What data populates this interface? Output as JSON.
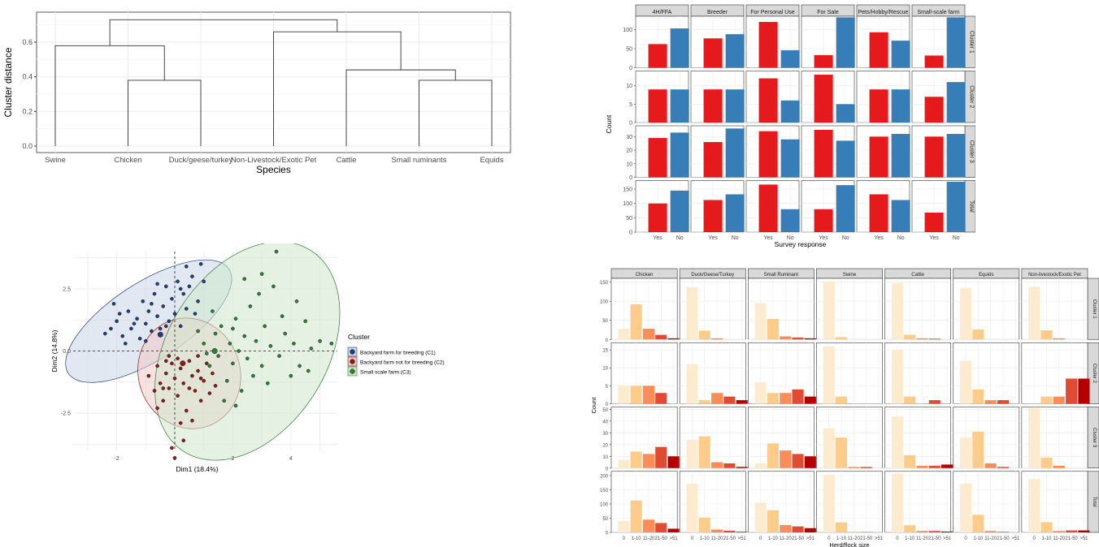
{
  "dendrogram": {
    "chart_data": {
      "type": "dendrogram",
      "xlabel": "Species",
      "ylabel": "Cluster distance",
      "ylim": [
        0,
        0.75
      ],
      "yticks": [
        "0.0",
        "0.2",
        "0.4",
        "0.6"
      ],
      "leaves": [
        "Swine",
        "Chicken",
        "Duck/geese/turkey",
        "Non-Livestock/Exotic Pet",
        "Cattle",
        "Small ruminants",
        "Equids"
      ],
      "merges": [
        {
          "a": "Chicken",
          "b": "Duck/geese/turkey",
          "height": 0.38
        },
        {
          "a": "Small ruminants",
          "b": "Equids",
          "height": 0.38
        },
        {
          "a": "Cattle",
          "b": "Small ruminants+Equids",
          "height": 0.44
        },
        {
          "a": "Swine",
          "b": "Chicken+Duck/geese/turkey",
          "height": 0.58
        },
        {
          "a": "Non-Livestock/Exotic Pet",
          "b": "Cattle+Small ruminants+Equids",
          "height": 0.66
        },
        {
          "a": "left",
          "b": "right",
          "height": 0.73
        }
      ],
      "grid": true
    }
  },
  "survey": {
    "chart_data": {
      "type": "bar",
      "facet_cols": [
        "4H/FFA",
        "Breeder",
        "For Personal Use",
        "For Sale",
        "Pets/Hobby/Rescue",
        "Small-scale farm"
      ],
      "facet_rows": [
        "Cluster 1",
        "Cluster 2",
        "Cluster 3",
        "Total"
      ],
      "categories": [
        "Yes",
        "No"
      ],
      "colors": {
        "Yes": "#e41a1c",
        "No": "#377eb8"
      },
      "xlabel": "Survey response",
      "ylabel": "Count",
      "rows": [
        {
          "ylim": [
            0,
            135
          ],
          "yticks": [
            0,
            50,
            100
          ],
          "values": [
            [
              62,
              103
            ],
            [
              77,
              88
            ],
            [
              120,
              46
            ],
            [
              33,
              132
            ],
            [
              93,
              71
            ],
            [
              32,
              132
            ]
          ]
        },
        {
          "ylim": [
            0,
            14
          ],
          "yticks": [
            0,
            5,
            10
          ],
          "values": [
            [
              9,
              9
            ],
            [
              9,
              9
            ],
            [
              12,
              6
            ],
            [
              13,
              5
            ],
            [
              9,
              9
            ],
            [
              7,
              11
            ]
          ]
        },
        {
          "ylim": [
            0,
            38
          ],
          "yticks": [
            0,
            10,
            20,
            30
          ],
          "values": [
            [
              29,
              33
            ],
            [
              26,
              36
            ],
            [
              34,
              28
            ],
            [
              35,
              27
            ],
            [
              30,
              32
            ],
            [
              30,
              32
            ]
          ]
        },
        {
          "ylim": [
            0,
            180
          ],
          "yticks": [
            0,
            50,
            100,
            150
          ],
          "values": [
            [
              100,
              145
            ],
            [
              112,
              132
            ],
            [
              166,
              80
            ],
            [
              80,
              164
            ],
            [
              132,
              112
            ],
            [
              68,
              176
            ]
          ]
        }
      ]
    }
  },
  "pca": {
    "chart_data": {
      "type": "scatter",
      "xlabel": "Dim1 (18.4%)",
      "ylabel": "Dim2 (14.8%)",
      "xlim": [
        -3.5,
        5.6
      ],
      "ylim": [
        -4.0,
        4.0
      ],
      "xticks": [
        "-2",
        "0",
        "2",
        "4"
      ],
      "yticks": [
        "2.5",
        "0.0",
        "-2.5"
      ],
      "legend_title": "Cluster",
      "legend_position": "right",
      "series": [
        {
          "name": "Backyard farm for breeding (C1)",
          "color": "#1f3f7a",
          "fill": "#c9d6e8",
          "ellipse": {
            "cx": -0.9,
            "cy": 1.2,
            "rx": 3.3,
            "ry": 1.55,
            "angle": 33
          },
          "points": [
            [
              -2.2,
              0.9
            ],
            [
              -2.0,
              1.2
            ],
            [
              -1.8,
              0.6
            ],
            [
              -1.6,
              1.6
            ],
            [
              -1.5,
              0.9
            ],
            [
              -1.3,
              1.3
            ],
            [
              -1.2,
              0.5
            ],
            [
              -1.1,
              2.0
            ],
            [
              -1.0,
              1.1
            ],
            [
              -0.9,
              1.6
            ],
            [
              -0.8,
              0.8
            ],
            [
              -0.7,
              2.3
            ],
            [
              -0.6,
              1.4
            ],
            [
              -0.5,
              0.9
            ],
            [
              -0.4,
              1.8
            ],
            [
              -0.3,
              2.6
            ],
            [
              -0.2,
              1.2
            ],
            [
              -0.1,
              2.1
            ],
            [
              0.0,
              1.5
            ],
            [
              0.1,
              2.8
            ],
            [
              0.2,
              1.0
            ],
            [
              0.3,
              2.3
            ],
            [
              0.4,
              1.7
            ],
            [
              0.5,
              2.6
            ],
            [
              0.6,
              3.0
            ],
            [
              0.8,
              2.0
            ],
            [
              0.9,
              3.5
            ],
            [
              1.0,
              2.8
            ],
            [
              -2.4,
              0.7
            ],
            [
              -1.9,
              1.5
            ],
            [
              -1.4,
              1.1
            ],
            [
              -0.8,
              1.9
            ],
            [
              -0.3,
              1.0
            ],
            [
              0.2,
              2.5
            ],
            [
              0.7,
              1.5
            ],
            [
              -1.7,
              0.3
            ],
            [
              -1.0,
              0.4
            ],
            [
              -0.6,
              2.7
            ],
            [
              0.4,
              3.4
            ],
            [
              -2.1,
              1.9
            ]
          ]
        },
        {
          "name": "Backyard farm not for breeding (C2)",
          "color": "#8b1a1a",
          "fill": "#f2c8c8",
          "ellipse": {
            "cx": 0.5,
            "cy": -0.9,
            "rx": 1.75,
            "ry": 2.25,
            "angle": 20
          },
          "points": [
            [
              -0.9,
              -1.0
            ],
            [
              -0.7,
              -1.6
            ],
            [
              -0.6,
              -0.6
            ],
            [
              -0.5,
              -1.3
            ],
            [
              -0.4,
              -2.0
            ],
            [
              -0.3,
              -0.9
            ],
            [
              -0.2,
              -1.5
            ],
            [
              -0.1,
              -0.5
            ],
            [
              0.0,
              -1.1
            ],
            [
              0.1,
              -1.8
            ],
            [
              0.2,
              -0.7
            ],
            [
              0.3,
              -1.3
            ],
            [
              0.4,
              -2.4
            ],
            [
              0.5,
              -0.4
            ],
            [
              0.6,
              -1.0
            ],
            [
              0.7,
              -1.6
            ],
            [
              0.8,
              -0.8
            ],
            [
              0.9,
              -2.0
            ],
            [
              1.0,
              -1.2
            ],
            [
              1.1,
              -0.5
            ],
            [
              1.2,
              -1.7
            ],
            [
              1.3,
              -0.9
            ],
            [
              -0.2,
              -0.2
            ],
            [
              0.1,
              -0.3
            ],
            [
              0.5,
              -1.5
            ],
            [
              0.8,
              -0.2
            ],
            [
              -0.4,
              -1.5
            ],
            [
              0.0,
              -4.3
            ],
            [
              -0.1,
              -3.9
            ],
            [
              0.3,
              -3.6
            ],
            [
              0.6,
              -2.8
            ],
            [
              -0.6,
              -2.3
            ],
            [
              1.4,
              -1.4
            ],
            [
              0.2,
              -2.9
            ],
            [
              -0.3,
              -0.4
            ],
            [
              0.9,
              -1.1
            ]
          ]
        },
        {
          "name": "Small scale farm (C3)",
          "color": "#2e7d32",
          "fill": "#cfe8cc",
          "ellipse": {
            "cx": 2.5,
            "cy": 0.0,
            "rx": 4.1,
            "ry": 3.2,
            "angle": 58
          },
          "points": [
            [
              1.0,
              0.3
            ],
            [
              1.2,
              -0.6
            ],
            [
              1.4,
              0.7
            ],
            [
              1.5,
              -0.2
            ],
            [
              1.6,
              1.0
            ],
            [
              1.8,
              -1.2
            ],
            [
              1.9,
              0.3
            ],
            [
              2.0,
              -0.5
            ],
            [
              2.1,
              1.3
            ],
            [
              2.2,
              0.0
            ],
            [
              2.3,
              -1.6
            ],
            [
              2.4,
              0.6
            ],
            [
              2.5,
              -0.3
            ],
            [
              2.6,
              1.8
            ],
            [
              2.7,
              -1.0
            ],
            [
              2.8,
              0.4
            ],
            [
              2.9,
              2.3
            ],
            [
              3.0,
              -0.6
            ],
            [
              3.1,
              1.0
            ],
            [
              3.2,
              -1.3
            ],
            [
              3.3,
              0.2
            ],
            [
              3.4,
              2.6
            ],
            [
              3.5,
              4.0
            ],
            [
              3.6,
              -0.2
            ],
            [
              3.7,
              1.4
            ],
            [
              3.8,
              0.7
            ],
            [
              4.0,
              -1.0
            ],
            [
              4.1,
              0.3
            ],
            [
              4.2,
              2.0
            ],
            [
              4.3,
              -0.6
            ],
            [
              4.5,
              1.2
            ],
            [
              4.6,
              -0.8
            ],
            [
              4.7,
              0.1
            ],
            [
              5.0,
              0.4
            ],
            [
              5.4,
              0.3
            ],
            [
              1.7,
              -2.0
            ],
            [
              2.1,
              -2.2
            ],
            [
              1.3,
              1.6
            ],
            [
              2.4,
              2.9
            ],
            [
              0.8,
              0.8
            ],
            [
              1.1,
              -0.1
            ],
            [
              2.0,
              0.9
            ],
            [
              3.0,
              3.1
            ]
          ]
        }
      ]
    }
  },
  "herd": {
    "chart_data": {
      "type": "bar",
      "facet_cols": [
        "Chicken",
        "Duck/Geese/Turkey",
        "Small Ruminant",
        "Swine",
        "Cattle",
        "Equids",
        "Non-livestock/Exotic Pet"
      ],
      "facet_rows": [
        "Cluster 1",
        "Cluster 2",
        "Cluster 3",
        "Total"
      ],
      "categories": [
        "0",
        "1-10",
        "11-20",
        "21-50",
        ">51"
      ],
      "colors": [
        "#fdebd0",
        "#fdcc8a",
        "#fc8d59",
        "#e34a33",
        "#b30000"
      ],
      "xlabel": "Herd/flock size",
      "ylabel": "Count",
      "rows": [
        {
          "ylim": [
            0,
            160
          ],
          "yticks": [
            0,
            50,
            100,
            150
          ],
          "values": [
            [
              28,
              92,
              28,
              12,
              3
            ],
            [
              137,
              23,
              3,
              0,
              0
            ],
            [
              95,
              54,
              8,
              5,
              3
            ],
            [
              152,
              6,
              0,
              0,
              0
            ],
            [
              148,
              12,
              3,
              2,
              0
            ],
            [
              135,
              26,
              0,
              0,
              0
            ],
            [
              138,
              24,
              3,
              0,
              0
            ]
          ]
        },
        {
          "ylim": [
            0,
            17
          ],
          "yticks": [
            0,
            5,
            10,
            15
          ],
          "values": [
            [
              5,
              5,
              5,
              3,
              0
            ],
            [
              11,
              1,
              3,
              2,
              1
            ],
            [
              6,
              3,
              3,
              4,
              2
            ],
            [
              16,
              2,
              0,
              0,
              0
            ],
            [
              15,
              2,
              0,
              1,
              0
            ],
            [
              12,
              4,
              1,
              1,
              0
            ],
            [
              0,
              2,
              2,
              7,
              7
            ]
          ]
        },
        {
          "ylim": [
            0,
            52
          ],
          "yticks": [
            0,
            10,
            20,
            30,
            40,
            50
          ],
          "values": [
            [
              7,
              14,
              12,
              18,
              10
            ],
            [
              24,
              27,
              5,
              4,
              1
            ],
            [
              4,
              21,
              15,
              12,
              10
            ],
            [
              34,
              26,
              1,
              1,
              0
            ],
            [
              44,
              11,
              2,
              2,
              3
            ],
            [
              26,
              31,
              4,
              1,
              0
            ],
            [
              51,
              9,
              2,
              0,
              0
            ]
          ]
        },
        {
          "ylim": [
            0,
            215
          ],
          "yticks": [
            0,
            50,
            100,
            150,
            200
          ],
          "values": [
            [
              40,
              112,
              45,
              33,
              13
            ],
            [
              172,
              52,
              10,
              6,
              2
            ],
            [
              105,
              78,
              26,
              21,
              15
            ],
            [
              203,
              35,
              1,
              1,
              0
            ],
            [
              207,
              25,
              5,
              5,
              3
            ],
            [
              172,
              62,
              5,
              2,
              0
            ],
            [
              188,
              36,
              5,
              7,
              7
            ]
          ]
        }
      ]
    }
  }
}
